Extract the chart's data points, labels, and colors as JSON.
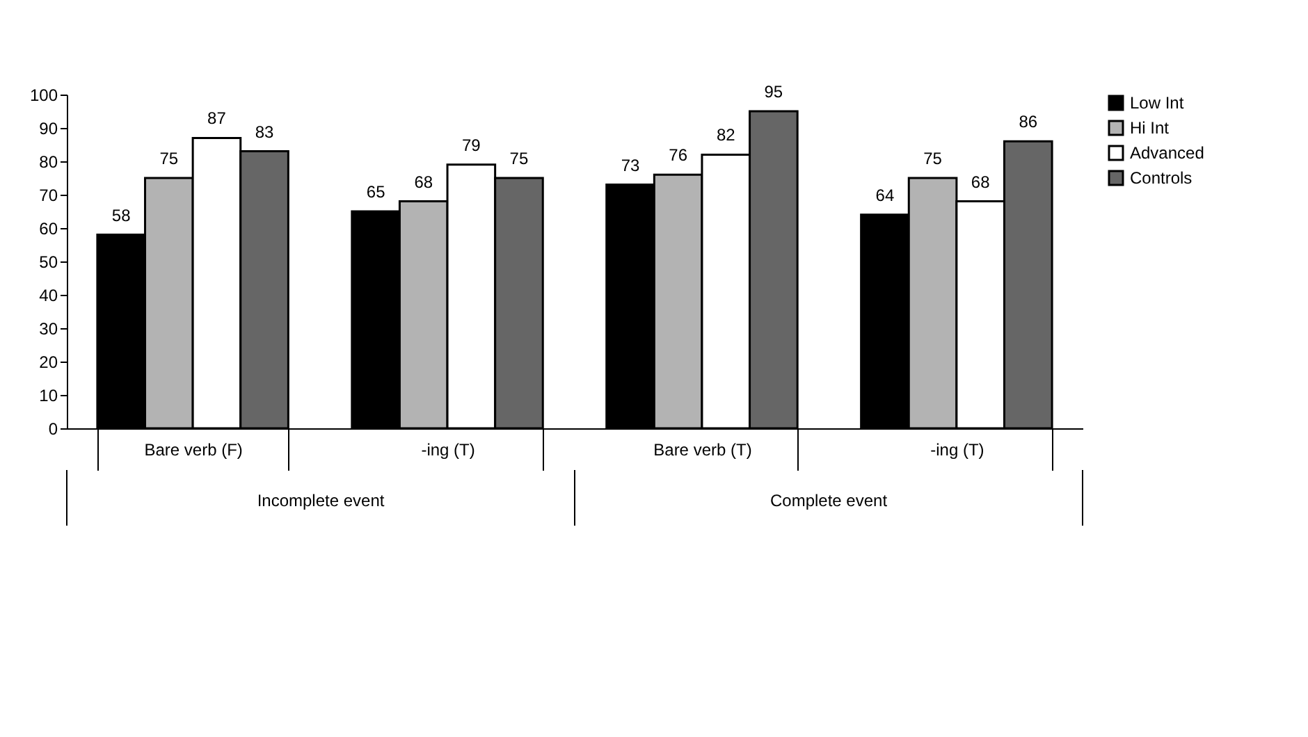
{
  "chart_data": {
    "type": "bar",
    "categories": [
      "Bare verb (F)",
      "-ing (T)",
      "Bare verb (T)",
      "-ing (T)"
    ],
    "series": [
      {
        "name": "Low Int",
        "color": "#000000",
        "values": [
          58,
          65,
          73,
          64
        ]
      },
      {
        "name": "Hi Int",
        "color": "#b3b3b3",
        "values": [
          75,
          68,
          76,
          75
        ]
      },
      {
        "name": "Advanced",
        "color": "#ffffff",
        "values": [
          87,
          79,
          82,
          68
        ]
      },
      {
        "name": "Controls",
        "color": "#666666",
        "values": [
          83,
          75,
          95,
          86
        ]
      }
    ],
    "ylim": [
      0,
      100
    ],
    "yticks": [
      0,
      10,
      20,
      30,
      40,
      50,
      60,
      70,
      80,
      90,
      100
    ],
    "annotations": [
      "Incomplete event",
      "Complete event"
    ],
    "data_labels": true,
    "grid": false,
    "legend": "right"
  }
}
